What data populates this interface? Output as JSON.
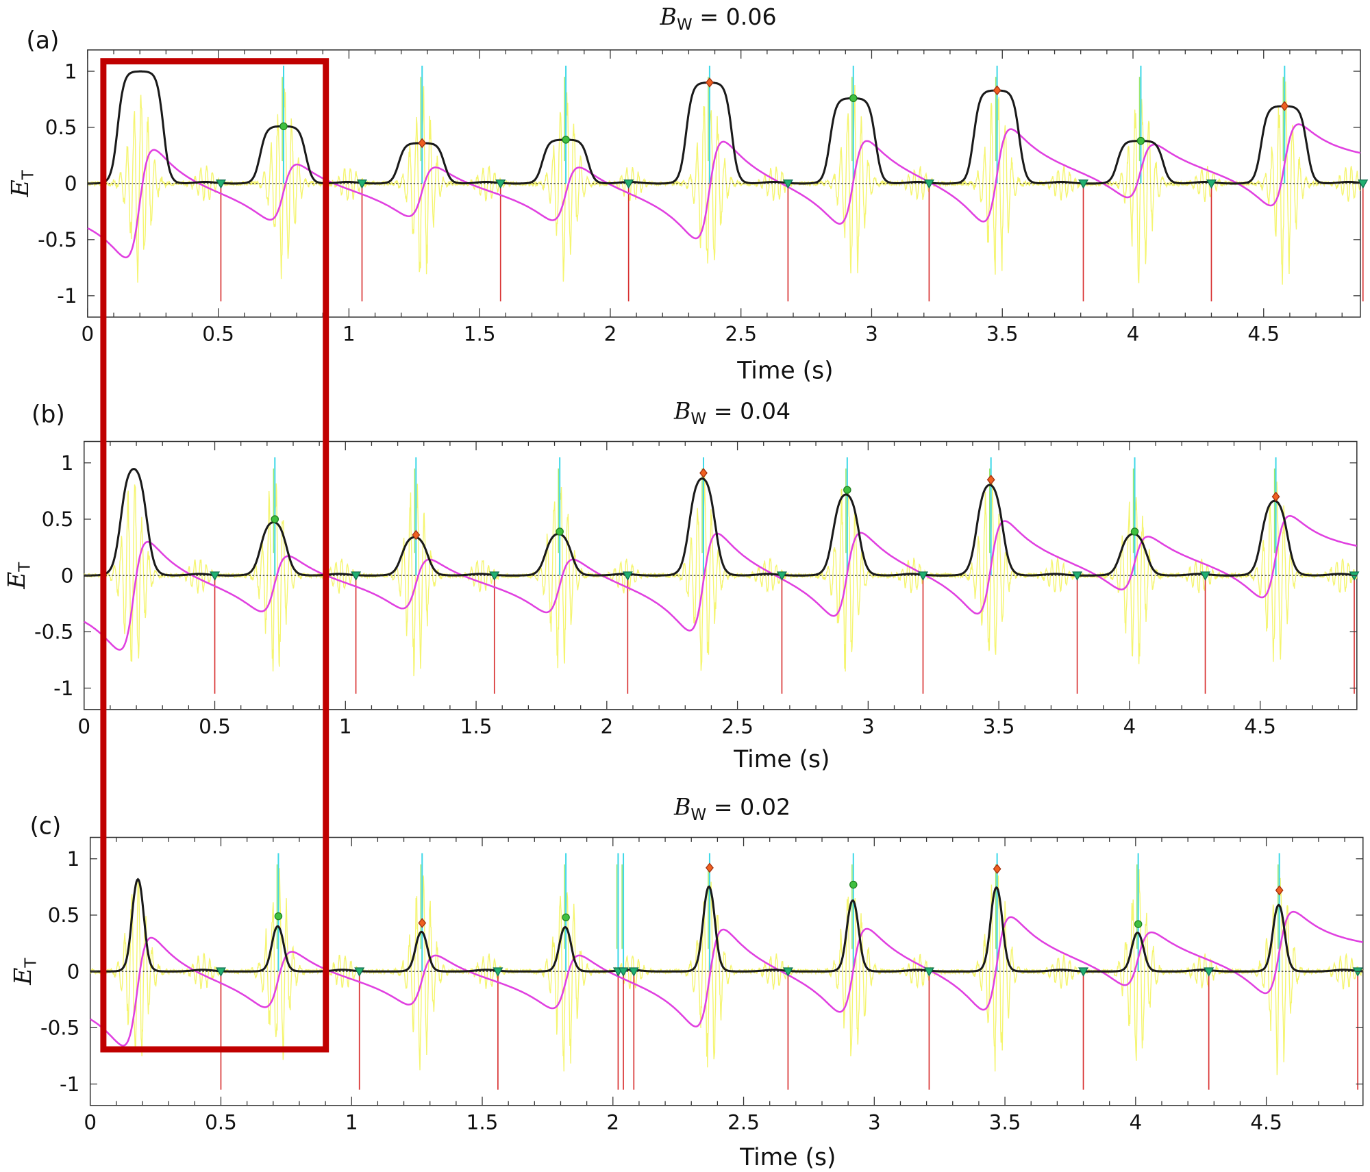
{
  "colors": {
    "envelope": "#1a1a1a",
    "derivative": "#e040e0",
    "signal": "#f5f570",
    "peak_line": "#40d8e8",
    "onset_line": "#d83030",
    "onset_marker": "#20b070",
    "peak_marker_green": "#40c040",
    "peak_marker_orange": "#f06020",
    "highlight_box": "#c00000"
  },
  "chart_data": [
    {
      "type": "line",
      "panel_label": "(a)",
      "title_var": "B",
      "title_sub": "W",
      "title_value": " = 0.06",
      "xlabel": "Time (s)",
      "ylabel_var": "E",
      "ylabel_sub": "T",
      "xlim": [
        0,
        4.87
      ],
      "ylim": [
        -1.19,
        1.19
      ],
      "xticks": [
        0,
        0.5,
        1,
        1.5,
        2,
        2.5,
        3,
        3.5,
        4,
        4.5
      ],
      "xtick_labels": [
        "0",
        "0.5",
        "1",
        "1.5",
        "2",
        "2.5",
        "3",
        "3.5",
        "4",
        "4.5"
      ],
      "yticks": [
        1,
        0.5,
        0,
        -0.5,
        -1
      ],
      "ytick_labels": [
        "1",
        "0.5",
        "0",
        "-0.5",
        "-1"
      ],
      "first_beat": {
        "time": 0.2,
        "value": 1.0
      },
      "peaks": [
        {
          "time": 0.75,
          "value": 0.51,
          "marker": "green"
        },
        {
          "time": 1.28,
          "value": 0.36,
          "marker": "orange"
        },
        {
          "time": 1.83,
          "value": 0.39,
          "marker": "green"
        },
        {
          "time": 2.38,
          "value": 0.9,
          "marker": "orange"
        },
        {
          "time": 2.93,
          "value": 0.76,
          "marker": "green"
        },
        {
          "time": 3.48,
          "value": 0.83,
          "marker": "orange"
        },
        {
          "time": 4.03,
          "value": 0.38,
          "marker": "green"
        },
        {
          "time": 4.58,
          "value": 0.69,
          "marker": "orange"
        }
      ],
      "onsets": [
        0.51,
        1.05,
        1.58,
        2.07,
        2.68,
        3.22,
        3.81,
        4.3,
        4.88
      ]
    },
    {
      "type": "line",
      "panel_label": "(b)",
      "title_var": "B",
      "title_sub": "W",
      "title_value": " = 0.04",
      "xlabel": "Time (s)",
      "ylabel_var": "E",
      "ylabel_sub": "T",
      "xlim": [
        0,
        4.87
      ],
      "ylim": [
        -1.19,
        1.19
      ],
      "xticks": [
        0,
        0.5,
        1,
        1.5,
        2,
        2.5,
        3,
        3.5,
        4,
        4.5
      ],
      "xtick_labels": [
        "0",
        "0.5",
        "1",
        "1.5",
        "2",
        "2.5",
        "3",
        "3.5",
        "4",
        "4.5"
      ],
      "yticks": [
        1,
        0.5,
        0,
        -0.5,
        -1
      ],
      "ytick_labels": [
        "1",
        "0.5",
        "0",
        "-0.5",
        "-1"
      ],
      "first_beat": {
        "time": 0.19,
        "value": 1.0
      },
      "peaks": [
        {
          "time": 0.73,
          "value": 0.5,
          "marker": "green"
        },
        {
          "time": 1.27,
          "value": 0.36,
          "marker": "orange"
        },
        {
          "time": 1.82,
          "value": 0.39,
          "marker": "green"
        },
        {
          "time": 2.37,
          "value": 0.91,
          "marker": "orange"
        },
        {
          "time": 2.92,
          "value": 0.76,
          "marker": "green"
        },
        {
          "time": 3.47,
          "value": 0.85,
          "marker": "orange"
        },
        {
          "time": 4.02,
          "value": 0.39,
          "marker": "green"
        },
        {
          "time": 4.56,
          "value": 0.7,
          "marker": "orange"
        }
      ],
      "onsets": [
        0.5,
        1.04,
        1.57,
        2.08,
        2.67,
        3.21,
        3.8,
        4.29,
        4.86
      ]
    },
    {
      "type": "line",
      "panel_label": "(c)",
      "title_var": "B",
      "title_sub": "W",
      "title_value": " = 0.02",
      "xlabel": "Time (s)",
      "ylabel_var": "E",
      "ylabel_sub": "T",
      "xlim": [
        0,
        4.87
      ],
      "ylim": [
        -1.19,
        1.19
      ],
      "xticks": [
        0,
        0.5,
        1,
        1.5,
        2,
        2.5,
        3,
        3.5,
        4,
        4.5
      ],
      "xtick_labels": [
        "0",
        "0.5",
        "1",
        "1.5",
        "2",
        "2.5",
        "3",
        "3.5",
        "4",
        "4.5"
      ],
      "yticks": [
        1,
        0.5,
        0,
        -0.5,
        -1
      ],
      "ytick_labels": [
        "1",
        "0.5",
        "0",
        "-0.5",
        "-1"
      ],
      "first_beat": {
        "time": 0.18,
        "value": 1.0
      },
      "peaks": [
        {
          "time": 0.72,
          "value": 0.49,
          "marker": "green"
        },
        {
          "time": 1.27,
          "value": 0.43,
          "marker": "orange"
        },
        {
          "time": 1.82,
          "value": 0.48,
          "marker": "green"
        },
        {
          "time": 2.37,
          "value": 0.92,
          "marker": "orange"
        },
        {
          "time": 2.92,
          "value": 0.77,
          "marker": "green"
        },
        {
          "time": 3.47,
          "value": 0.91,
          "marker": "orange"
        },
        {
          "time": 4.01,
          "value": 0.42,
          "marker": "green"
        },
        {
          "time": 4.55,
          "value": 0.72,
          "marker": "orange"
        }
      ],
      "extra_peak_lines": [
        2.02,
        2.04
      ],
      "onsets": [
        0.5,
        1.03,
        1.56,
        2.02,
        2.04,
        2.08,
        2.67,
        3.21,
        3.8,
        4.28,
        4.85
      ]
    }
  ],
  "highlight_box": {
    "x_range": [
      0.06,
      0.9
    ],
    "description_visible": false
  }
}
